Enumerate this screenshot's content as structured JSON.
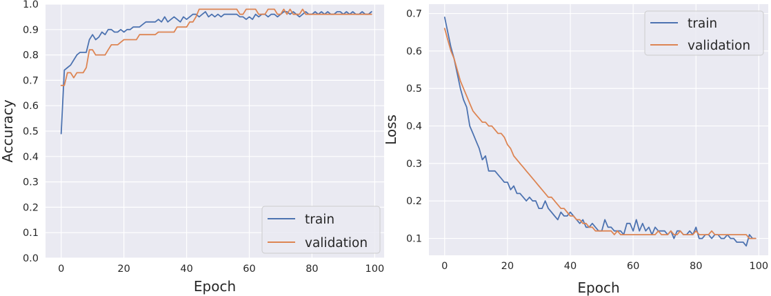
{
  "colors": {
    "train": "#4c72b0",
    "validation": "#dd8452",
    "panel": "#eaeaf2",
    "grid": "#ffffff"
  },
  "chart_data": [
    {
      "type": "line",
      "title": "",
      "xlabel": "Epoch",
      "ylabel": "Accuracy",
      "xlim": [
        -5,
        103
      ],
      "ylim": [
        0.0,
        1.0
      ],
      "xticks": [
        0,
        20,
        40,
        60,
        80,
        100
      ],
      "yticks": [
        0.0,
        0.1,
        0.2,
        0.3,
        0.4,
        0.5,
        0.6,
        0.7,
        0.8,
        0.9,
        1.0
      ],
      "xtick_labels": [
        "0",
        "20",
        "40",
        "60",
        "80",
        "100"
      ],
      "ytick_labels": [
        "0.0",
        "0.1",
        "0.2",
        "0.3",
        "0.4",
        "0.5",
        "0.6",
        "0.7",
        "0.8",
        "0.9",
        "1.0"
      ],
      "grid": true,
      "legend": "lower-right",
      "series": [
        {
          "name": "train",
          "color": "#4c72b0",
          "x": [
            0,
            1,
            2,
            3,
            4,
            5,
            6,
            7,
            8,
            9,
            10,
            11,
            12,
            13,
            14,
            15,
            16,
            17,
            18,
            19,
            20,
            21,
            22,
            23,
            24,
            25,
            26,
            27,
            28,
            29,
            30,
            31,
            32,
            33,
            34,
            35,
            36,
            37,
            38,
            39,
            40,
            41,
            42,
            43,
            44,
            45,
            46,
            47,
            48,
            49,
            50,
            51,
            52,
            53,
            54,
            55,
            56,
            57,
            58,
            59,
            60,
            61,
            62,
            63,
            64,
            65,
            66,
            67,
            68,
            69,
            70,
            71,
            72,
            73,
            74,
            75,
            76,
            77,
            78,
            79,
            80,
            81,
            82,
            83,
            84,
            85,
            86,
            87,
            88,
            89,
            90,
            91,
            92,
            93,
            94,
            95,
            96,
            97,
            98,
            99
          ],
          "values": [
            0.49,
            0.74,
            0.75,
            0.76,
            0.78,
            0.8,
            0.81,
            0.81,
            0.81,
            0.86,
            0.88,
            0.86,
            0.87,
            0.89,
            0.88,
            0.9,
            0.9,
            0.89,
            0.89,
            0.9,
            0.89,
            0.9,
            0.9,
            0.91,
            0.91,
            0.91,
            0.92,
            0.93,
            0.93,
            0.93,
            0.93,
            0.94,
            0.93,
            0.95,
            0.93,
            0.94,
            0.95,
            0.94,
            0.93,
            0.95,
            0.94,
            0.95,
            0.96,
            0.96,
            0.95,
            0.96,
            0.97,
            0.95,
            0.96,
            0.95,
            0.96,
            0.95,
            0.96,
            0.96,
            0.96,
            0.96,
            0.96,
            0.95,
            0.95,
            0.94,
            0.95,
            0.94,
            0.96,
            0.95,
            0.96,
            0.96,
            0.95,
            0.96,
            0.96,
            0.95,
            0.96,
            0.97,
            0.97,
            0.96,
            0.97,
            0.96,
            0.95,
            0.96,
            0.97,
            0.96,
            0.96,
            0.97,
            0.96,
            0.97,
            0.96,
            0.97,
            0.96,
            0.96,
            0.97,
            0.97,
            0.96,
            0.97,
            0.96,
            0.97,
            0.96,
            0.96,
            0.97,
            0.96,
            0.96,
            0.97
          ]
        },
        {
          "name": "validation",
          "color": "#dd8452",
          "x": [
            0,
            1,
            2,
            3,
            4,
            5,
            6,
            7,
            8,
            9,
            10,
            11,
            12,
            13,
            14,
            15,
            16,
            17,
            18,
            19,
            20,
            21,
            22,
            23,
            24,
            25,
            26,
            27,
            28,
            29,
            30,
            31,
            32,
            33,
            34,
            35,
            36,
            37,
            38,
            39,
            40,
            41,
            42,
            43,
            44,
            45,
            46,
            47,
            48,
            49,
            50,
            51,
            52,
            53,
            54,
            55,
            56,
            57,
            58,
            59,
            60,
            61,
            62,
            63,
            64,
            65,
            66,
            67,
            68,
            69,
            70,
            71,
            72,
            73,
            74,
            75,
            76,
            77,
            78,
            79,
            80,
            81,
            82,
            83,
            84,
            85,
            86,
            87,
            88,
            89,
            90,
            91,
            92,
            93,
            94,
            95,
            96,
            97,
            98,
            99
          ],
          "values": [
            0.68,
            0.68,
            0.73,
            0.73,
            0.71,
            0.73,
            0.73,
            0.73,
            0.75,
            0.82,
            0.82,
            0.8,
            0.8,
            0.8,
            0.8,
            0.82,
            0.84,
            0.84,
            0.84,
            0.85,
            0.86,
            0.86,
            0.86,
            0.86,
            0.86,
            0.88,
            0.88,
            0.88,
            0.88,
            0.88,
            0.88,
            0.89,
            0.89,
            0.89,
            0.89,
            0.89,
            0.89,
            0.91,
            0.91,
            0.91,
            0.91,
            0.93,
            0.93,
            0.95,
            0.98,
            0.98,
            0.98,
            0.98,
            0.98,
            0.98,
            0.98,
            0.98,
            0.98,
            0.98,
            0.98,
            0.98,
            0.98,
            0.96,
            0.96,
            0.98,
            0.98,
            0.98,
            0.98,
            0.96,
            0.96,
            0.96,
            0.98,
            0.98,
            0.98,
            0.96,
            0.96,
            0.98,
            0.96,
            0.98,
            0.96,
            0.96,
            0.96,
            0.98,
            0.96,
            0.96,
            0.96,
            0.96,
            0.96,
            0.96,
            0.96,
            0.96,
            0.96,
            0.96,
            0.96,
            0.96,
            0.96,
            0.96,
            0.96,
            0.96,
            0.96,
            0.96,
            0.96,
            0.96,
            0.96,
            0.96
          ]
        }
      ]
    },
    {
      "type": "line",
      "title": "",
      "xlabel": "Epoch",
      "ylabel": "Loss",
      "xlim": [
        -5,
        103
      ],
      "ylim": [
        0.055,
        0.725
      ],
      "xticks": [
        0,
        20,
        40,
        60,
        80,
        100
      ],
      "yticks": [
        0.1,
        0.2,
        0.3,
        0.4,
        0.5,
        0.6,
        0.7
      ],
      "xtick_labels": [
        "0",
        "20",
        "40",
        "60",
        "80",
        "100"
      ],
      "ytick_labels": [
        "0.1",
        "0.2",
        "0.3",
        "0.4",
        "0.5",
        "0.6",
        "0.7"
      ],
      "grid": true,
      "legend": "upper-right",
      "series": [
        {
          "name": "train",
          "color": "#4c72b0",
          "x": [
            0,
            1,
            2,
            3,
            4,
            5,
            6,
            7,
            8,
            9,
            10,
            11,
            12,
            13,
            14,
            15,
            16,
            17,
            18,
            19,
            20,
            21,
            22,
            23,
            24,
            25,
            26,
            27,
            28,
            29,
            30,
            31,
            32,
            33,
            34,
            35,
            36,
            37,
            38,
            39,
            40,
            41,
            42,
            43,
            44,
            45,
            46,
            47,
            48,
            49,
            50,
            51,
            52,
            53,
            54,
            55,
            56,
            57,
            58,
            59,
            60,
            61,
            62,
            63,
            64,
            65,
            66,
            67,
            68,
            69,
            70,
            71,
            72,
            73,
            74,
            75,
            76,
            77,
            78,
            79,
            80,
            81,
            82,
            83,
            84,
            85,
            86,
            87,
            88,
            89,
            90,
            91,
            92,
            93,
            94,
            95,
            96,
            97,
            98,
            99
          ],
          "values": [
            0.69,
            0.65,
            0.61,
            0.58,
            0.54,
            0.5,
            0.47,
            0.45,
            0.4,
            0.38,
            0.36,
            0.34,
            0.31,
            0.32,
            0.28,
            0.28,
            0.28,
            0.27,
            0.26,
            0.25,
            0.25,
            0.23,
            0.24,
            0.22,
            0.22,
            0.21,
            0.2,
            0.21,
            0.2,
            0.2,
            0.18,
            0.18,
            0.2,
            0.18,
            0.17,
            0.16,
            0.15,
            0.17,
            0.16,
            0.16,
            0.17,
            0.16,
            0.15,
            0.14,
            0.15,
            0.13,
            0.13,
            0.14,
            0.13,
            0.12,
            0.12,
            0.15,
            0.13,
            0.13,
            0.12,
            0.12,
            0.12,
            0.11,
            0.14,
            0.14,
            0.12,
            0.15,
            0.12,
            0.14,
            0.12,
            0.13,
            0.11,
            0.13,
            0.12,
            0.12,
            0.12,
            0.11,
            0.12,
            0.1,
            0.12,
            0.12,
            0.11,
            0.11,
            0.12,
            0.11,
            0.13,
            0.1,
            0.1,
            0.11,
            0.11,
            0.1,
            0.11,
            0.11,
            0.1,
            0.1,
            0.11,
            0.1,
            0.1,
            0.09,
            0.09,
            0.09,
            0.08,
            0.11,
            0.1,
            0.1
          ]
        },
        {
          "name": "validation",
          "color": "#dd8452",
          "x": [
            0,
            1,
            2,
            3,
            4,
            5,
            6,
            7,
            8,
            9,
            10,
            11,
            12,
            13,
            14,
            15,
            16,
            17,
            18,
            19,
            20,
            21,
            22,
            23,
            24,
            25,
            26,
            27,
            28,
            29,
            30,
            31,
            32,
            33,
            34,
            35,
            36,
            37,
            38,
            39,
            40,
            41,
            42,
            43,
            44,
            45,
            46,
            47,
            48,
            49,
            50,
            51,
            52,
            53,
            54,
            55,
            56,
            57,
            58,
            59,
            60,
            61,
            62,
            63,
            64,
            65,
            66,
            67,
            68,
            69,
            70,
            71,
            72,
            73,
            74,
            75,
            76,
            77,
            78,
            79,
            80,
            81,
            82,
            83,
            84,
            85,
            86,
            87,
            88,
            89,
            90,
            91,
            92,
            93,
            94,
            95,
            96,
            97,
            98,
            99
          ],
          "values": [
            0.66,
            0.63,
            0.6,
            0.58,
            0.55,
            0.52,
            0.5,
            0.48,
            0.46,
            0.44,
            0.43,
            0.42,
            0.41,
            0.41,
            0.4,
            0.4,
            0.39,
            0.38,
            0.38,
            0.37,
            0.35,
            0.34,
            0.32,
            0.31,
            0.3,
            0.29,
            0.28,
            0.27,
            0.26,
            0.25,
            0.24,
            0.23,
            0.22,
            0.21,
            0.21,
            0.2,
            0.19,
            0.18,
            0.18,
            0.17,
            0.16,
            0.16,
            0.15,
            0.15,
            0.14,
            0.14,
            0.13,
            0.13,
            0.12,
            0.12,
            0.12,
            0.12,
            0.12,
            0.12,
            0.11,
            0.12,
            0.11,
            0.11,
            0.11,
            0.11,
            0.11,
            0.11,
            0.11,
            0.11,
            0.11,
            0.11,
            0.11,
            0.11,
            0.12,
            0.11,
            0.11,
            0.11,
            0.12,
            0.11,
            0.11,
            0.12,
            0.11,
            0.11,
            0.11,
            0.11,
            0.12,
            0.11,
            0.11,
            0.11,
            0.11,
            0.12,
            0.11,
            0.11,
            0.11,
            0.11,
            0.11,
            0.11,
            0.11,
            0.11,
            0.11,
            0.11,
            0.11,
            0.1,
            0.1,
            0.1
          ]
        }
      ]
    }
  ]
}
